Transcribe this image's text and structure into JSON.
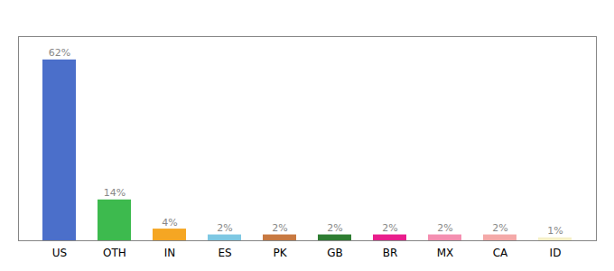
{
  "chart_data": {
    "type": "bar",
    "categories": [
      "US",
      "OTH",
      "IN",
      "ES",
      "PK",
      "GB",
      "BR",
      "MX",
      "CA",
      "ID"
    ],
    "values": [
      62,
      14,
      4,
      2,
      2,
      2,
      2,
      2,
      2,
      1
    ],
    "value_labels": [
      "62%",
      "14%",
      "4%",
      "2%",
      "2%",
      "2%",
      "2%",
      "2%",
      "2%",
      "1%"
    ],
    "colors": [
      "#4b6fca",
      "#3dba4e",
      "#f5a623",
      "#7ec8e3",
      "#c87941",
      "#2e7d32",
      "#e91e8c",
      "#f48fb1",
      "#f4a9a8",
      "#f5f0c8"
    ],
    "ylim": [
      0,
      70
    ],
    "data_labels": true,
    "tick_labels": "x",
    "grid": false
  }
}
